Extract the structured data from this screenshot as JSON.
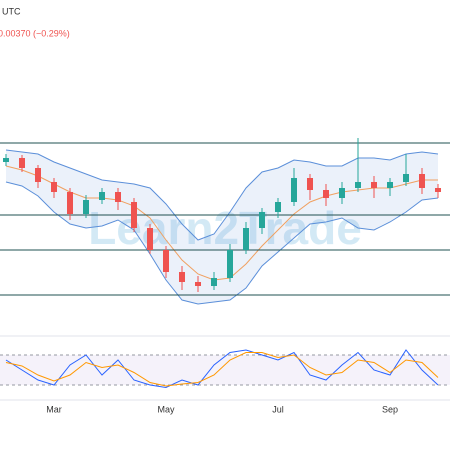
{
  "chart_data": {
    "type": "candlestick",
    "timezone": "UTC",
    "change": "0.00370 (−0.29%)",
    "watermark": "Learn2Trade",
    "categories": [
      null,
      null,
      null,
      "Mar",
      null,
      null,
      null,
      null,
      null,
      null,
      "May",
      null,
      null,
      null,
      null,
      null,
      null,
      "Jul",
      null,
      null,
      null,
      null,
      null,
      null,
      "Sep",
      null,
      null,
      null
    ],
    "open": [
      288,
      292,
      282,
      268,
      258,
      236,
      250,
      258,
      248,
      222,
      200,
      178,
      168,
      164,
      172,
      200,
      222,
      238,
      248,
      272,
      260,
      252,
      262,
      268,
      262,
      268,
      276,
      262
    ],
    "high": [
      296,
      295,
      285,
      272,
      262,
      255,
      262,
      262,
      252,
      226,
      204,
      184,
      174,
      178,
      206,
      228,
      242,
      252,
      282,
      276,
      266,
      268,
      312,
      274,
      272,
      296,
      282,
      266
    ],
    "low": [
      284,
      278,
      262,
      252,
      230,
      232,
      246,
      240,
      218,
      196,
      172,
      160,
      158,
      160,
      168,
      196,
      216,
      232,
      244,
      250,
      244,
      246,
      258,
      252,
      254,
      264,
      256,
      252
    ],
    "close": [
      292,
      282,
      268,
      258,
      236,
      250,
      258,
      248,
      222,
      200,
      178,
      168,
      164,
      172,
      200,
      222,
      238,
      248,
      272,
      260,
      252,
      262,
      268,
      262,
      268,
      276,
      262,
      258
    ],
    "up_color": "#26a69a",
    "down_color": "#ef5350",
    "bands": {
      "upper": [
        300,
        298,
        296,
        288,
        282,
        276,
        270,
        268,
        266,
        262,
        246,
        226,
        210,
        216,
        238,
        262,
        278,
        282,
        290,
        288,
        284,
        284,
        292,
        292,
        290,
        296,
        298,
        296
      ],
      "middle": [
        284,
        280,
        274,
        266,
        258,
        252,
        252,
        250,
        244,
        232,
        210,
        190,
        176,
        170,
        172,
        186,
        204,
        220,
        236,
        248,
        254,
        258,
        260,
        262,
        262,
        266,
        270,
        270
      ],
      "lower": [
        268,
        264,
        254,
        238,
        226,
        222,
        224,
        230,
        220,
        196,
        170,
        150,
        146,
        148,
        150,
        162,
        184,
        198,
        212,
        226,
        228,
        232,
        222,
        220,
        228,
        238,
        250,
        252
      ],
      "band_color": "#5b8fd9",
      "middle_color": "#f0a060"
    },
    "levels": [
      307,
      235,
      200,
      155
    ],
    "level_color": "#1f5050",
    "ylim": [
      130,
      320
    ],
    "oscillator": {
      "k": [
        70,
        50,
        30,
        20,
        60,
        80,
        40,
        70,
        30,
        20,
        15,
        30,
        20,
        60,
        85,
        90,
        80,
        70,
        85,
        40,
        30,
        60,
        85,
        50,
        40,
        90,
        50,
        20
      ],
      "d": [
        65,
        58,
        40,
        28,
        40,
        65,
        55,
        60,
        45,
        25,
        18,
        22,
        25,
        40,
        70,
        85,
        85,
        75,
        80,
        55,
        40,
        45,
        70,
        65,
        45,
        70,
        65,
        35
      ],
      "k_color": "#2962ff",
      "d_color": "#ff9800",
      "ylim": [
        0,
        100
      ],
      "levels": [
        80,
        20
      ]
    }
  }
}
